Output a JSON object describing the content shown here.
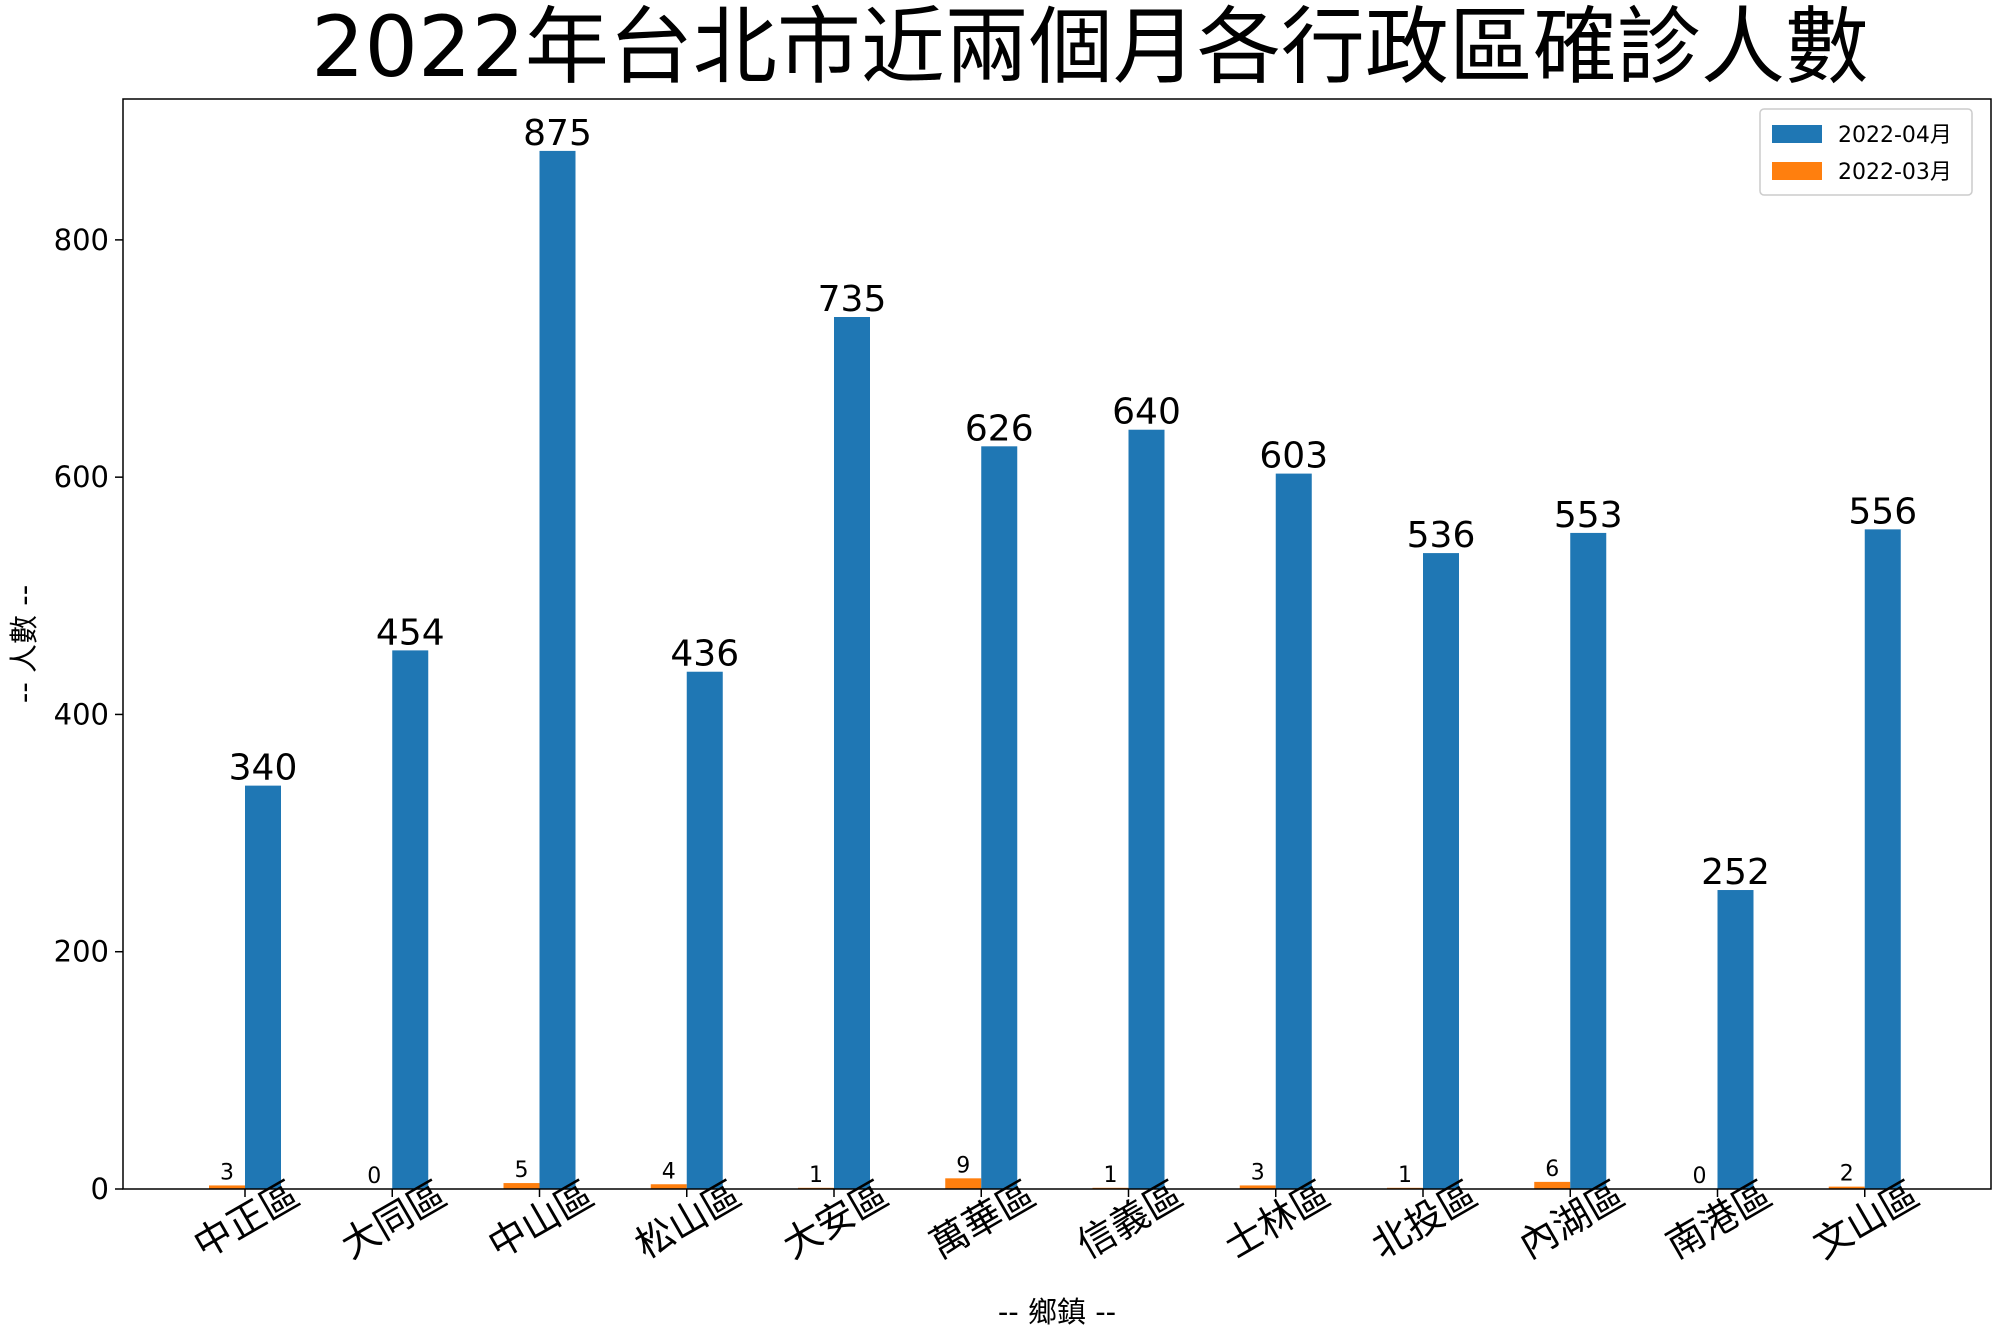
{
  "chart_data": {
    "type": "bar",
    "title": "2022年台北市近兩個月各行政區確診人數",
    "xlabel": "-- 鄉鎮 --",
    "ylabel": "-- 人數 --",
    "categories": [
      "中正區",
      "大同區",
      "中山區",
      "松山區",
      "大安區",
      "萬華區",
      "信義區",
      "士林區",
      "北投區",
      "內湖區",
      "南港區",
      "文山區"
    ],
    "series": [
      {
        "name": "2022-04月",
        "color": "#1f77b4",
        "values": [
          340,
          454,
          875,
          436,
          735,
          626,
          640,
          603,
          536,
          553,
          252,
          556
        ]
      },
      {
        "name": "2022-03月",
        "color": "#ff7f0e",
        "values": [
          3,
          0,
          5,
          4,
          1,
          9,
          1,
          3,
          1,
          6,
          0,
          2
        ]
      }
    ],
    "yticks": [
      0,
      200,
      400,
      600,
      800
    ],
    "ylim": [
      0,
      918.75
    ],
    "grid": false,
    "legend": "top-right",
    "bar_value_labels": true
  }
}
